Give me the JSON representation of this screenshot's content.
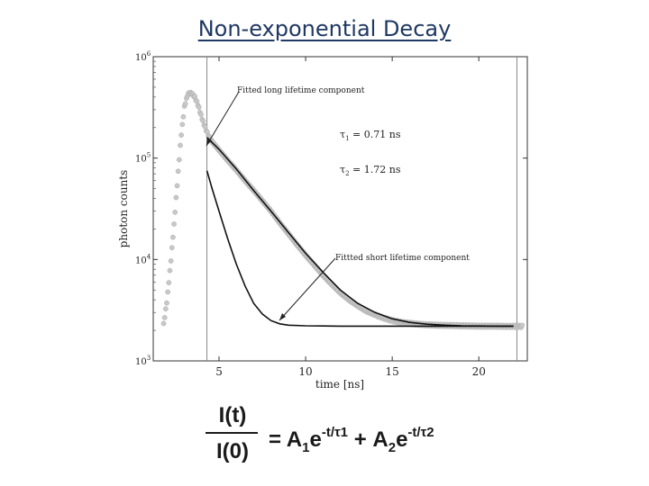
{
  "slide_title": "Non-exponential Decay",
  "chart_data": {
    "type": "scatter",
    "xlabel": "time [ns]",
    "ylabel": "photon counts",
    "x_range": [
      1.2,
      22.8
    ],
    "y_range": [
      1000,
      1000000
    ],
    "y_scale": "log",
    "x_ticks": [
      5,
      10,
      15,
      20
    ],
    "x_tick_labels": [
      "5",
      "10",
      "15",
      "20"
    ],
    "y_tick_labels": [
      {
        "value": 1000,
        "base": "10",
        "exp": "3"
      },
      {
        "value": 10000,
        "base": "10",
        "exp": "4"
      },
      {
        "value": 100000,
        "base": "10",
        "exp": "5"
      },
      {
        "value": 1000000,
        "base": "10",
        "exp": "6"
      }
    ],
    "grid": false,
    "vertical_markers": [
      4.3,
      22.2
    ],
    "annotations": {
      "long_label": "Fitted long lifetime component",
      "short_label": "Fittted short lifetime component",
      "tau1_sym": "τ",
      "tau1_sub": "1",
      "tau1_value": " = 0.71 ns",
      "tau2_sym": "τ",
      "tau2_sub": "2",
      "tau2_value": " = 1.72 ns"
    },
    "series": [
      {
        "role": "measured-data",
        "x": [
          1.8,
          2.0,
          2.2,
          2.4,
          2.6,
          2.8,
          3.0,
          3.2,
          3.4,
          3.6,
          3.8,
          4.0,
          4.2,
          4.4,
          4.6,
          5.0,
          5.5,
          6.0,
          6.5,
          7.0,
          7.5,
          8.0,
          8.5,
          9.0,
          9.5,
          10.0,
          10.5,
          11.0,
          11.5,
          12.0,
          12.5,
          13.0,
          13.5,
          14.0,
          14.5,
          15.0,
          15.5,
          16.0,
          16.5,
          17.0,
          17.5,
          18.0,
          18.5,
          19.0,
          19.5,
          20.0,
          20.5,
          21.0,
          21.5,
          22.0,
          22.5
        ],
        "y": [
          2300,
          4000,
          9000,
          22000,
          60000,
          160000,
          320000,
          430000,
          440000,
          400000,
          330000,
          250000,
          200000,
          165000,
          145000,
          120000,
          95000,
          76000,
          60000,
          48000,
          38000,
          30000,
          23000,
          18000,
          14000,
          11000,
          8800,
          7000,
          5700,
          4700,
          4000,
          3500,
          3100,
          2850,
          2650,
          2500,
          2400,
          2350,
          2300,
          2270,
          2250,
          2240,
          2230,
          2220,
          2210,
          2200,
          2200,
          2200,
          2190,
          2190,
          2190
        ]
      },
      {
        "role": "fitted-long-component",
        "x": [
          4.3,
          5.0,
          6.0,
          7.0,
          8.0,
          9.0,
          10.0,
          11.0,
          12.0,
          13.0,
          14.0,
          15.0,
          16.0,
          17.0,
          18.0,
          19.0,
          20.0,
          21.0,
          22.0
        ],
        "y": [
          160000,
          122000,
          78000,
          48000,
          30000,
          18500,
          11500,
          7500,
          5000,
          3700,
          3000,
          2600,
          2400,
          2300,
          2250,
          2220,
          2210,
          2200,
          2200
        ]
      },
      {
        "role": "fitted-short-component",
        "x": [
          4.3,
          4.6,
          5.0,
          5.5,
          6.0,
          6.5,
          7.0,
          7.5,
          8.0,
          8.5,
          9.0,
          10.0,
          11.0,
          12.0,
          14.0,
          16.0,
          18.0,
          20.0,
          22.0
        ],
        "y": [
          75000,
          50000,
          30000,
          16000,
          9000,
          5500,
          3700,
          2900,
          2500,
          2320,
          2250,
          2220,
          2210,
          2200,
          2200,
          2200,
          2200,
          2200,
          2200
        ]
      }
    ]
  },
  "formula": {
    "numerator": "I(t)",
    "denominator": "I(0)",
    "eq": "= A",
    "a1_sub": "1",
    "e1": "e",
    "exp1": "-t/τ1",
    "plus": " +  A",
    "a2_sub": "2",
    "e2": "e",
    "exp2": "-t/τ2"
  }
}
